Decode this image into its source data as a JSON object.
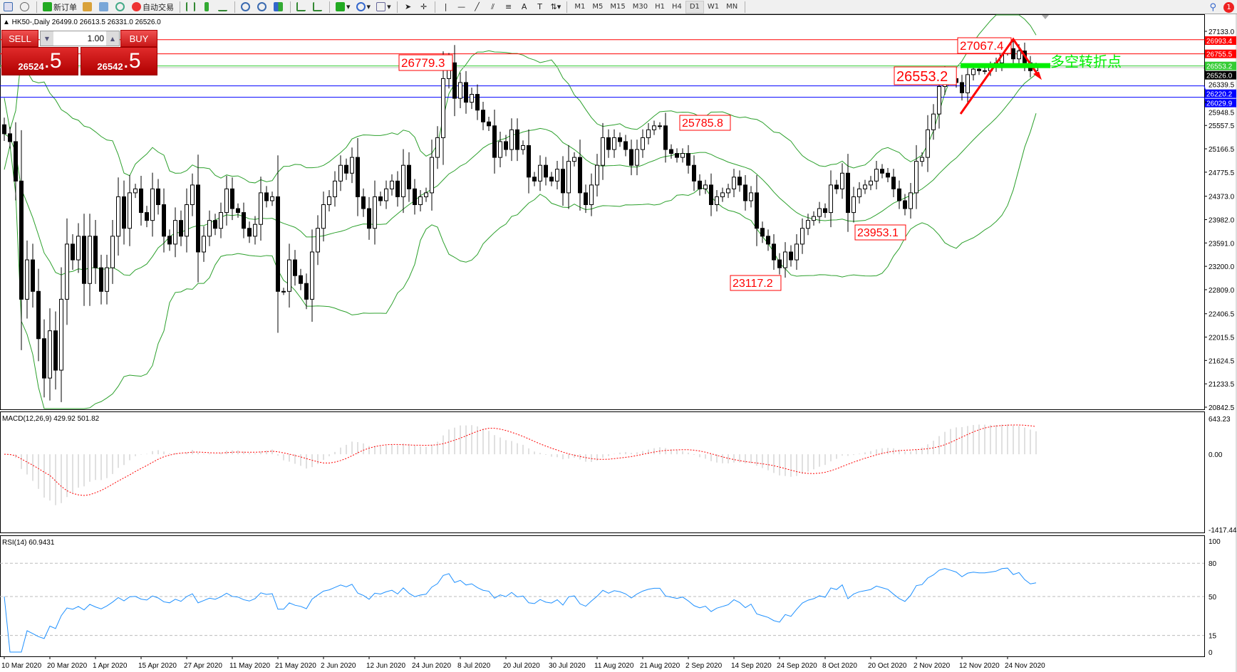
{
  "toolbar": {
    "new_order": "新订单",
    "auto_trading": "自动交易",
    "timeframes": [
      "M1",
      "M5",
      "M15",
      "M30",
      "H1",
      "H4",
      "D1",
      "W1",
      "MN"
    ],
    "active_timeframe": "D1",
    "notification_count": "1"
  },
  "chart": {
    "symbol_info": "HK50-,Daily  26499.0 26613.5 26331.0 26526.0",
    "price_ticks": [
      "27133.0",
      "26339.5",
      "25948.5",
      "25557.5",
      "25166.5",
      "24775.5",
      "24373.0",
      "23982.0",
      "23591.0",
      "23200.0",
      "22809.0",
      "22406.5",
      "22015.5",
      "21624.5",
      "21233.5",
      "20842.5"
    ],
    "price_range": [
      20842.5,
      27133.0
    ],
    "levels": [
      {
        "price": 26993.4,
        "label": "26993.4",
        "color": "#ff0000"
      },
      {
        "price": 26755.5,
        "label": "26755.5",
        "color": "#ff0000"
      },
      {
        "price": 26553.2,
        "label": "26553.2",
        "color": "#33cc33"
      },
      {
        "price": 26526.0,
        "label": "26526.0",
        "color": "#000000"
      },
      {
        "price": 26220.2,
        "label": "26220.2",
        "color": "#0000ff"
      },
      {
        "price": 26029.9,
        "label": "26029.9",
        "color": "#0000ff"
      }
    ],
    "annotations": [
      "26779.3",
      "27067.4",
      "26553.2",
      "25785.8",
      "23953.1",
      "23117.2"
    ],
    "pivot_text": "多空转折点",
    "dates": [
      "10 Mar 2020",
      "20 Mar 2020",
      "1 Apr 2020",
      "15 Apr 2020",
      "27 Apr 2020",
      "11 May 2020",
      "21 May 2020",
      "2 Jun 2020",
      "12 Jun 2020",
      "24 Jun 2020",
      "8 Jul 2020",
      "20 Jul 2020",
      "30 Jul 2020",
      "11 Aug 2020",
      "21 Aug 2020",
      "2 Sep 2020",
      "14 Sep 2020",
      "24 Sep 2020",
      "8 Oct 2020",
      "20 Oct 2020",
      "2 Nov 2020",
      "12 Nov 2020",
      "24 Nov 2020"
    ],
    "closes": [
      25419,
      25287,
      24627,
      22649,
      23308,
      22781,
      21989,
      21330,
      22121,
      21462,
      22649,
      23572,
      23308,
      23704,
      22913,
      23704,
      23176,
      22781,
      23176,
      23704,
      24364,
      23836,
      24430,
      24496,
      24100,
      23968,
      24496,
      24232,
      23704,
      23572,
      23968,
      23704,
      24232,
      24561,
      23440,
      23704,
      23968,
      23836,
      24100,
      24496,
      24166,
      24100,
      23836,
      23704,
      23902,
      24430,
      24298,
      24364,
      22781,
      22781,
      23308,
      23044,
      22913,
      22649,
      23440,
      23836,
      24232,
      24364,
      24627,
      24891,
      24759,
      25023,
      24364,
      24166,
      23836,
      24364,
      24298,
      24496,
      24627,
      24364,
      24891,
      24496,
      24232,
      24364,
      24430,
      25023,
      25353,
      26342,
      26606,
      26012,
      26276,
      25946,
      26078,
      25814,
      25617,
      25551,
      25023,
      25287,
      25155,
      25485,
      25155,
      25221,
      24693,
      24627,
      24891,
      24693,
      24627,
      24825,
      24430,
      24957,
      25023,
      24430,
      24232,
      24561,
      24891,
      25353,
      25155,
      25353,
      25287,
      25155,
      24891,
      25155,
      25353,
      25485,
      25551,
      25551,
      25155,
      25089,
      25023,
      25089,
      24891,
      24627,
      24496,
      24561,
      24232,
      24364,
      24430,
      24496,
      24693,
      24561,
      24298,
      24430,
      23836,
      23704,
      23572,
      23308,
      23176,
      23440,
      23308,
      23572,
      23836,
      23968,
      24034,
      24166,
      24100,
      24561,
      24496,
      24759,
      24100,
      24364,
      24496,
      24561,
      24627,
      24825,
      24759,
      24693,
      24496,
      24298,
      24166,
      24430,
      24957,
      25023,
      25485,
      25749,
      26210,
      26408,
      26342,
      26276,
      26104,
      26408,
      26500,
      26474,
      26474,
      26540,
      26606,
      26804,
      26843,
      26672,
      26804,
      26606,
      26474,
      26526
    ]
  },
  "trade_panel": {
    "sell": "SELL",
    "buy": "BUY",
    "lot": "1.00",
    "sell_main": "26524",
    "sell_frac": ".5",
    "buy_main": "26542",
    "buy_frac": ".5"
  },
  "macd": {
    "label": "MACD(12,26,9) 429.92 501.82",
    "ticks": [
      "643.23",
      "0.00",
      "-1417.44"
    ],
    "range": [
      -1417.44,
      643.23
    ]
  },
  "rsi": {
    "label": "RSI(14) 60.9431",
    "ticks": [
      "100",
      "80",
      "50",
      "15",
      "0"
    ],
    "levels": [
      80,
      50,
      15
    ]
  },
  "colors": {
    "bands": "#2ca02c",
    "bull_candle": "#ffffff",
    "bear_candle": "#000000",
    "macd_bars": "#c0c0c0",
    "signal": "#ff0000",
    "rsi": "#1e90ff",
    "annotation": "#ff0000",
    "pivot": "#00ee00"
  }
}
